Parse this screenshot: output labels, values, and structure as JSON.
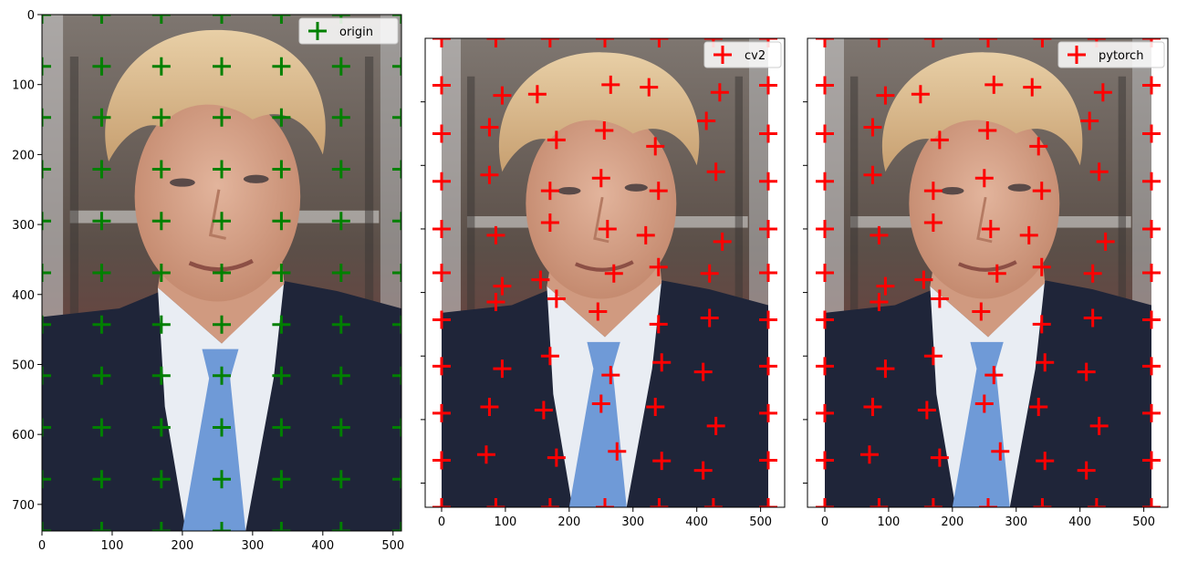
{
  "colors": {
    "origin": "#008000",
    "warped": "#ff0000",
    "axis": "#000000"
  },
  "image_description_colors": {
    "suit": "#1e2438",
    "shirt": "#e8ecf2",
    "tie": "#6e9ad6",
    "hair": "#d9b98c",
    "skin": "#d8a48c",
    "background": "#6a5b52"
  },
  "chart_data": [
    {
      "type": "scatter",
      "legend": {
        "label": "origin",
        "position": "upper-right"
      },
      "xlim": [
        0,
        512
      ],
      "ylim_inverted": [
        0,
        738
      ],
      "xticks": [
        0,
        100,
        200,
        300,
        400,
        500
      ],
      "yticks": [
        0,
        100,
        200,
        300,
        400,
        500,
        600,
        700
      ],
      "show_ytick_labels": true,
      "grid": false,
      "points": [
        [
          0,
          0
        ],
        [
          85,
          0
        ],
        [
          170,
          0
        ],
        [
          256,
          0
        ],
        [
          341,
          0
        ],
        [
          426,
          0
        ],
        [
          512,
          0
        ],
        [
          0,
          74
        ],
        [
          85,
          74
        ],
        [
          170,
          74
        ],
        [
          256,
          74
        ],
        [
          341,
          74
        ],
        [
          426,
          74
        ],
        [
          512,
          74
        ],
        [
          0,
          147
        ],
        [
          85,
          147
        ],
        [
          170,
          147
        ],
        [
          256,
          147
        ],
        [
          341,
          147
        ],
        [
          426,
          147
        ],
        [
          512,
          147
        ],
        [
          0,
          221
        ],
        [
          85,
          221
        ],
        [
          170,
          221
        ],
        [
          256,
          221
        ],
        [
          341,
          221
        ],
        [
          426,
          221
        ],
        [
          512,
          221
        ],
        [
          0,
          295
        ],
        [
          85,
          295
        ],
        [
          170,
          295
        ],
        [
          256,
          295
        ],
        [
          341,
          295
        ],
        [
          426,
          295
        ],
        [
          512,
          295
        ],
        [
          0,
          369
        ],
        [
          85,
          369
        ],
        [
          170,
          369
        ],
        [
          256,
          369
        ],
        [
          341,
          369
        ],
        [
          426,
          369
        ],
        [
          512,
          369
        ],
        [
          0,
          443
        ],
        [
          85,
          443
        ],
        [
          170,
          443
        ],
        [
          256,
          443
        ],
        [
          341,
          443
        ],
        [
          426,
          443
        ],
        [
          512,
          443
        ],
        [
          0,
          516
        ],
        [
          85,
          516
        ],
        [
          170,
          516
        ],
        [
          256,
          516
        ],
        [
          341,
          516
        ],
        [
          426,
          516
        ],
        [
          512,
          516
        ],
        [
          0,
          590
        ],
        [
          85,
          590
        ],
        [
          170,
          590
        ],
        [
          256,
          590
        ],
        [
          341,
          590
        ],
        [
          426,
          590
        ],
        [
          512,
          590
        ],
        [
          0,
          664
        ],
        [
          85,
          664
        ],
        [
          170,
          664
        ],
        [
          256,
          664
        ],
        [
          341,
          664
        ],
        [
          426,
          664
        ],
        [
          512,
          664
        ],
        [
          0,
          738
        ],
        [
          85,
          738
        ],
        [
          170,
          738
        ],
        [
          256,
          738
        ],
        [
          341,
          738
        ],
        [
          426,
          738
        ],
        [
          512,
          738
        ]
      ]
    },
    {
      "type": "scatter",
      "legend": {
        "label": "cv2",
        "position": "upper-right"
      },
      "xlim": [
        0,
        512
      ],
      "ylim_inverted": [
        0,
        738
      ],
      "xticks": [
        0,
        100,
        200,
        300,
        400,
        500
      ],
      "yticks": [
        100,
        200,
        300,
        400,
        500,
        600,
        700
      ],
      "show_ytick_labels": false,
      "grid": false,
      "points": [
        [
          0,
          0
        ],
        [
          85,
          0
        ],
        [
          170,
          0
        ],
        [
          256,
          0
        ],
        [
          341,
          0
        ],
        [
          426,
          0
        ],
        [
          512,
          0
        ],
        [
          0,
          74
        ],
        [
          95,
          90
        ],
        [
          150,
          88
        ],
        [
          265,
          73
        ],
        [
          325,
          77
        ],
        [
          436,
          85
        ],
        [
          512,
          74
        ],
        [
          0,
          150
        ],
        [
          75,
          140
        ],
        [
          180,
          160
        ],
        [
          255,
          145
        ],
        [
          335,
          170
        ],
        [
          415,
          130
        ],
        [
          512,
          150
        ],
        [
          0,
          225
        ],
        [
          75,
          215
        ],
        [
          170,
          240
        ],
        [
          250,
          220
        ],
        [
          340,
          240
        ],
        [
          430,
          210
        ],
        [
          512,
          225
        ],
        [
          0,
          300
        ],
        [
          85,
          310
        ],
        [
          170,
          290
        ],
        [
          260,
          300
        ],
        [
          320,
          310
        ],
        [
          440,
          320
        ],
        [
          512,
          300
        ],
        [
          0,
          369
        ],
        [
          95,
          390
        ],
        [
          155,
          380
        ],
        [
          270,
          370
        ],
        [
          340,
          360
        ],
        [
          420,
          370
        ],
        [
          512,
          369
        ],
        [
          0,
          443
        ],
        [
          85,
          415
        ],
        [
          180,
          410
        ],
        [
          245,
          430
        ],
        [
          340,
          450
        ],
        [
          420,
          440
        ],
        [
          512,
          443
        ],
        [
          0,
          516
        ],
        [
          95,
          520
        ],
        [
          170,
          500
        ],
        [
          265,
          530
        ],
        [
          345,
          510
        ],
        [
          410,
          525
        ],
        [
          512,
          516
        ],
        [
          0,
          590
        ],
        [
          75,
          580
        ],
        [
          160,
          585
        ],
        [
          250,
          575
        ],
        [
          335,
          580
        ],
        [
          430,
          610
        ],
        [
          512,
          590
        ],
        [
          0,
          664
        ],
        [
          70,
          655
        ],
        [
          180,
          660
        ],
        [
          275,
          650
        ],
        [
          345,
          665
        ],
        [
          410,
          680
        ],
        [
          512,
          664
        ],
        [
          0,
          738
        ],
        [
          85,
          738
        ],
        [
          170,
          738
        ],
        [
          256,
          738
        ],
        [
          341,
          738
        ],
        [
          426,
          738
        ],
        [
          512,
          738
        ]
      ]
    },
    {
      "type": "scatter",
      "legend": {
        "label": "pytorch",
        "position": "upper-right"
      },
      "xlim": [
        0,
        512
      ],
      "ylim_inverted": [
        0,
        738
      ],
      "xticks": [
        0,
        100,
        200,
        300,
        400,
        500
      ],
      "yticks": [
        100,
        200,
        300,
        400,
        500,
        600,
        700
      ],
      "show_ytick_labels": false,
      "grid": false,
      "points": [
        [
          0,
          0
        ],
        [
          85,
          0
        ],
        [
          170,
          0
        ],
        [
          256,
          0
        ],
        [
          341,
          0
        ],
        [
          426,
          0
        ],
        [
          512,
          0
        ],
        [
          0,
          74
        ],
        [
          95,
          90
        ],
        [
          150,
          88
        ],
        [
          265,
          73
        ],
        [
          325,
          77
        ],
        [
          436,
          85
        ],
        [
          512,
          74
        ],
        [
          0,
          150
        ],
        [
          75,
          140
        ],
        [
          180,
          160
        ],
        [
          255,
          145
        ],
        [
          335,
          170
        ],
        [
          415,
          130
        ],
        [
          512,
          150
        ],
        [
          0,
          225
        ],
        [
          75,
          215
        ],
        [
          170,
          240
        ],
        [
          250,
          220
        ],
        [
          340,
          240
        ],
        [
          430,
          210
        ],
        [
          512,
          225
        ],
        [
          0,
          300
        ],
        [
          85,
          310
        ],
        [
          170,
          290
        ],
        [
          260,
          300
        ],
        [
          320,
          310
        ],
        [
          440,
          320
        ],
        [
          512,
          300
        ],
        [
          0,
          369
        ],
        [
          95,
          390
        ],
        [
          155,
          380
        ],
        [
          270,
          370
        ],
        [
          340,
          360
        ],
        [
          420,
          370
        ],
        [
          512,
          369
        ],
        [
          0,
          443
        ],
        [
          85,
          415
        ],
        [
          180,
          410
        ],
        [
          245,
          430
        ],
        [
          340,
          450
        ],
        [
          420,
          440
        ],
        [
          512,
          443
        ],
        [
          0,
          516
        ],
        [
          95,
          520
        ],
        [
          170,
          500
        ],
        [
          265,
          530
        ],
        [
          345,
          510
        ],
        [
          410,
          525
        ],
        [
          512,
          516
        ],
        [
          0,
          590
        ],
        [
          75,
          580
        ],
        [
          160,
          585
        ],
        [
          250,
          575
        ],
        [
          335,
          580
        ],
        [
          430,
          610
        ],
        [
          512,
          590
        ],
        [
          0,
          664
        ],
        [
          70,
          655
        ],
        [
          180,
          660
        ],
        [
          275,
          650
        ],
        [
          345,
          665
        ],
        [
          410,
          680
        ],
        [
          512,
          664
        ],
        [
          0,
          738
        ],
        [
          85,
          738
        ],
        [
          170,
          738
        ],
        [
          256,
          738
        ],
        [
          341,
          738
        ],
        [
          426,
          738
        ],
        [
          512,
          738
        ]
      ]
    }
  ]
}
